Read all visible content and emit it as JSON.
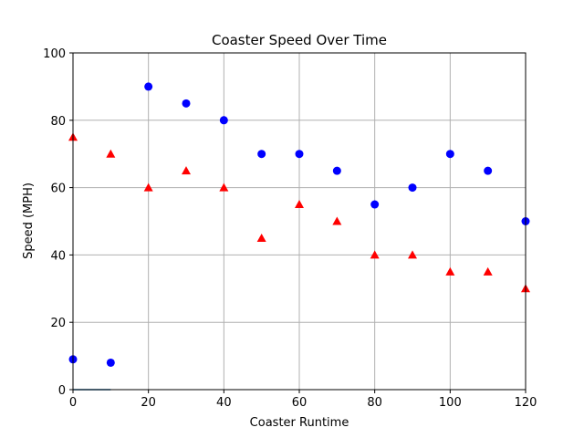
{
  "chart_data": {
    "type": "scatter",
    "title": "Coaster Speed Over Time",
    "xlabel": "Coaster Runtime",
    "ylabel": "Speed (MPH)",
    "xlim": [
      0,
      120
    ],
    "ylim": [
      0,
      100
    ],
    "xticks": [
      0,
      20,
      40,
      60,
      80,
      100,
      120
    ],
    "yticks": [
      0,
      20,
      40,
      60,
      80,
      100
    ],
    "grid": "vertical and horizontal at major ticks",
    "series": [
      {
        "marker": "circle",
        "color": "#0000ff",
        "x": [
          0,
          10,
          20,
          30,
          40,
          50,
          60,
          70,
          80,
          90,
          100,
          110,
          120
        ],
        "y": [
          9,
          8,
          90,
          85,
          80,
          70,
          70,
          65,
          55,
          60,
          70,
          65,
          50
        ]
      },
      {
        "marker": "triangle-up",
        "color": "#ff0000",
        "x": [
          0,
          10,
          20,
          30,
          40,
          50,
          60,
          70,
          80,
          90,
          100,
          110,
          120
        ],
        "y": [
          75,
          70,
          60,
          65,
          60,
          45,
          55,
          50,
          40,
          40,
          35,
          35,
          30
        ]
      },
      {
        "marker": "line",
        "color": "#1f77b4",
        "x": [
          0,
          10
        ],
        "y": [
          0,
          0
        ]
      }
    ]
  }
}
